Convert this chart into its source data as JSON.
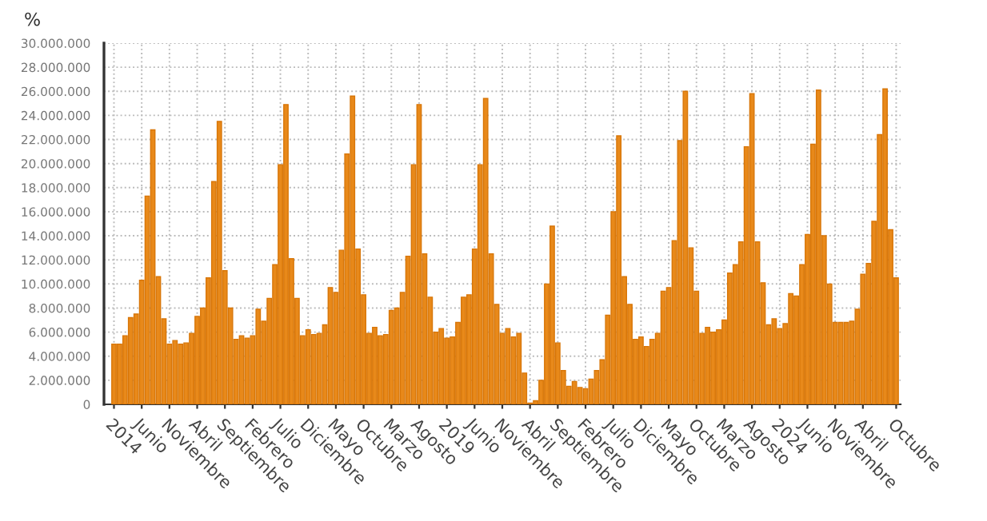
{
  "chart_data": {
    "type": "bar",
    "ylabel": "%",
    "categories": [
      "2014",
      null,
      null,
      null,
      null,
      "Junio",
      null,
      null,
      null,
      null,
      "Noviembre",
      null,
      null,
      null,
      null,
      "Abril",
      null,
      null,
      null,
      null,
      "Septiembre",
      null,
      null,
      null,
      null,
      "Febrero",
      null,
      null,
      null,
      null,
      "Julio",
      null,
      null,
      null,
      null,
      "Diciembre",
      null,
      null,
      null,
      null,
      "Mayo",
      null,
      null,
      null,
      null,
      "Octubre",
      null,
      null,
      null,
      null,
      "Marzo",
      null,
      null,
      null,
      null,
      "Agosto",
      null,
      null,
      null,
      null,
      "2019",
      null,
      null,
      null,
      null,
      "Junio",
      null,
      null,
      null,
      null,
      "Noviembre",
      null,
      null,
      null,
      null,
      "Abril",
      null,
      null,
      null,
      null,
      "Septiembre",
      null,
      null,
      null,
      null,
      "Febrero",
      null,
      null,
      null,
      null,
      "Julio",
      null,
      null,
      null,
      null,
      "Diciembre",
      null,
      null,
      null,
      null,
      "Mayo",
      null,
      null,
      null,
      null,
      "Octubre",
      null,
      null,
      null,
      null,
      "Marzo",
      null,
      null,
      null,
      null,
      "Agosto",
      null,
      null,
      null,
      null,
      "2024",
      null,
      null,
      null,
      null,
      "Junio",
      null,
      null,
      null,
      null,
      "Noviembre",
      null,
      null,
      null,
      null,
      "Abril",
      null,
      null,
      null,
      null,
      null,
      "Octubre"
    ],
    "values": [
      5000000,
      5000000,
      5700000,
      7200000,
      7500000,
      10300000,
      17300000,
      22800000,
      10600000,
      7100000,
      5000000,
      5300000,
      5000000,
      5100000,
      5900000,
      7300000,
      8000000,
      10500000,
      18500000,
      23500000,
      11100000,
      8000000,
      5400000,
      5700000,
      5500000,
      5700000,
      7900000,
      6900000,
      8800000,
      11600000,
      19900000,
      24900000,
      12100000,
      8800000,
      5700000,
      6200000,
      5800000,
      5900000,
      6600000,
      9700000,
      9300000,
      12800000,
      20800000,
      25600000,
      12900000,
      9100000,
      5900000,
      6400000,
      5700000,
      5800000,
      7800000,
      8000000,
      9300000,
      12300000,
      19900000,
      24900000,
      12500000,
      8900000,
      6000000,
      6300000,
      5500000,
      5600000,
      6800000,
      8900000,
      9100000,
      12900000,
      19900000,
      25400000,
      12500000,
      8300000,
      5900000,
      6300000,
      5600000,
      5900000,
      2600000,
      100000,
      300000,
      2000000,
      10000000,
      14800000,
      5100000,
      2800000,
      1500000,
      1900000,
      1400000,
      1300000,
      2100000,
      2800000,
      3700000,
      7400000,
      16000000,
      22300000,
      10600000,
      8300000,
      5400000,
      5600000,
      4800000,
      5400000,
      5900000,
      9400000,
      9700000,
      13600000,
      21900000,
      26000000,
      13000000,
      9400000,
      5900000,
      6400000,
      6000000,
      6200000,
      7000000,
      10900000,
      11600000,
      13500000,
      21400000,
      25800000,
      13500000,
      10100000,
      6600000,
      7100000,
      6300000,
      6700000,
      9200000,
      9000000,
      11600000,
      14100000,
      21600000,
      26100000,
      14000000,
      10000000,
      6800000,
      6800000,
      6800000,
      6900000,
      7900000,
      10800000,
      11700000,
      15200000,
      22400000,
      26200000,
      14500000,
      10500000
    ],
    "color": "#e8891a",
    "ylim": [
      0,
      30000000
    ],
    "yticks": [
      0,
      {
        "value": 2000000,
        "label": "2.000.000"
      },
      {
        "value": 4000000,
        "label": "4.000.000"
      },
      {
        "value": 6000000,
        "label": "6.000.000"
      },
      {
        "value": 8000000,
        "label": "8.000.000"
      },
      {
        "value": 10000000,
        "label": "10.000.000"
      },
      {
        "value": 12000000,
        "label": "12.000.000"
      },
      {
        "value": 14000000,
        "label": "14.000.000"
      },
      {
        "value": 16000000,
        "label": "16.000.000"
      },
      {
        "value": 18000000,
        "label": "18.000.000"
      },
      {
        "value": 20000000,
        "label": "20.000.000"
      },
      {
        "value": 22000000,
        "label": "22.000.000"
      },
      {
        "value": 24000000,
        "label": "24.000.000"
      },
      {
        "value": 26000000,
        "label": "26.000.000"
      },
      {
        "value": 28000000,
        "label": "28.000.000"
      },
      {
        "value": 30000000,
        "label": "30.000.000"
      }
    ],
    "grid": true
  }
}
